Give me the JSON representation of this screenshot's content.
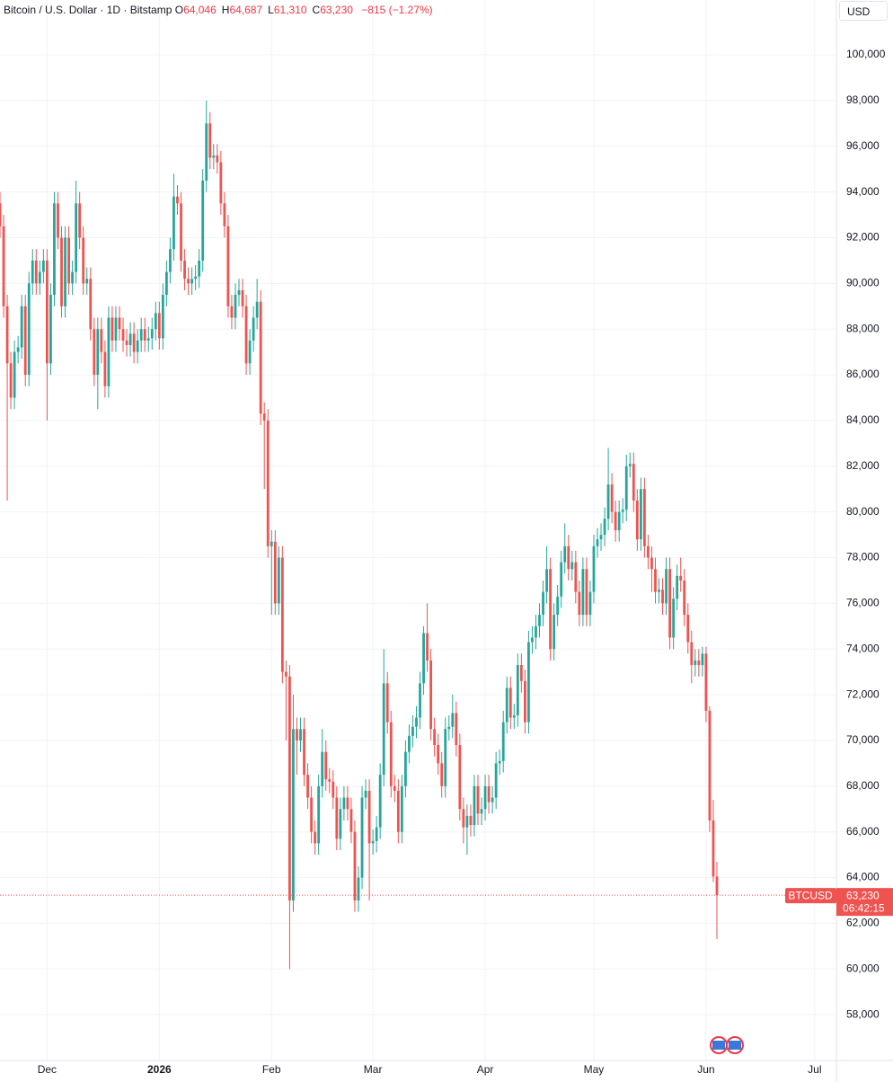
{
  "header": {
    "symbol": "Bitcoin / U.S. Dollar · 1D · Bitstamp",
    "ohlc": [
      {
        "label": "O",
        "value": "64,046"
      },
      {
        "label": "H",
        "value": "64,687"
      },
      {
        "label": "L",
        "value": "61,310"
      },
      {
        "label": "C",
        "value": "63,230"
      }
    ],
    "change": "−815 (−1.27%)"
  },
  "currency": "USD",
  "price_tag": {
    "name": "BTCUSD",
    "price": "63,230",
    "countdown": "06:42:15"
  },
  "chart_data": {
    "type": "candlestick",
    "up_color": "#26a69a",
    "down_color": "#ef5350",
    "grid": true,
    "x": [
      0,
      1,
      2,
      3,
      4,
      5,
      6,
      7,
      8,
      9,
      10,
      11,
      12,
      13,
      14,
      15,
      16,
      17,
      18,
      19,
      20,
      21,
      22,
      23,
      24,
      25,
      26,
      27,
      28,
      29,
      30,
      31,
      32,
      33,
      34,
      35,
      36,
      37,
      38,
      39,
      40,
      41,
      42,
      43,
      44,
      45,
      46,
      47,
      48,
      49,
      50,
      51,
      52,
      53,
      54,
      55,
      56,
      57,
      58,
      59,
      60,
      61,
      62,
      63,
      64,
      65,
      66,
      67,
      68,
      69,
      70,
      71,
      72,
      73,
      74,
      75,
      76,
      77,
      78,
      79,
      80,
      81,
      82,
      83,
      84,
      85,
      86,
      87,
      88,
      89,
      90,
      91,
      92,
      93,
      94,
      95,
      96,
      97,
      98,
      99,
      100,
      101,
      102,
      103,
      104,
      105,
      106,
      107,
      108,
      109,
      110,
      111,
      112,
      113,
      114,
      115,
      116,
      117,
      118,
      119,
      120,
      121,
      122,
      123,
      124,
      125,
      126,
      127,
      128,
      129,
      130,
      131,
      132,
      133,
      134,
      135,
      136,
      137,
      138,
      139,
      140,
      141,
      142,
      143,
      144,
      145,
      146,
      147,
      148,
      149,
      150,
      151,
      152,
      153,
      154,
      155,
      156,
      157,
      158,
      159,
      160,
      161,
      162,
      163,
      164,
      165,
      166,
      167,
      168,
      169,
      170,
      171,
      172,
      173,
      174,
      175,
      176,
      177,
      178,
      179,
      180,
      181,
      182,
      183,
      184,
      185,
      186,
      187,
      188,
      189,
      190,
      191,
      192,
      193,
      194,
      195,
      196,
      197,
      198
    ],
    "open": [
      93500,
      92500,
      89000,
      86500,
      85000,
      87000,
      87200,
      89000,
      86000,
      90000,
      91000,
      90000,
      90500,
      91000,
      86500,
      89500,
      93500,
      92000,
      89000,
      92000,
      90000,
      90500,
      93500,
      92000,
      90000,
      90200,
      88000,
      86000,
      88000,
      87000,
      85500,
      88500,
      87500,
      88500,
      88000,
      87500,
      87300,
      87800,
      87000,
      87500,
      88000,
      87500,
      87600,
      88000,
      88700,
      87600,
      89500,
      90500,
      91500,
      93800,
      93500,
      91000,
      90200,
      90000,
      90200,
      90300,
      91000,
      94500,
      97000,
      95500,
      95600,
      95300,
      93500,
      92500,
      89000,
      88500,
      89500,
      89700,
      89000,
      86500,
      87500,
      88500,
      89200,
      84300,
      84000,
      78500,
      78700,
      76000,
      78000,
      73000,
      72800,
      63000,
      70500,
      70000,
      70500,
      68500,
      67500,
      66000,
      65500,
      68000,
      69500,
      68300,
      68200,
      67500,
      65700,
      67000,
      67500,
      67000,
      66000,
      63000,
      64000,
      67500,
      67800,
      65500,
      65600,
      66200,
      68500,
      72500,
      70800,
      68000,
      67800,
      66000,
      68000,
      69500,
      70200,
      70600,
      71000,
      72500,
      74700,
      73500,
      70500,
      69800,
      69000,
      68000,
      70500,
      70600,
      71200,
      69800,
      67000,
      66200,
      66700,
      66300,
      68000,
      66800,
      67000,
      68000,
      67300,
      67500,
      69000,
      69100,
      70800,
      72300,
      71000,
      71100,
      73300,
      72600,
      70800,
      74300,
      74500,
      75000,
      75500,
      76500,
      77500,
      74000,
      75500,
      76300,
      77800,
      78500,
      77500,
      77800,
      76500,
      75500,
      77500,
      75500,
      76500,
      78500,
      78800,
      79000,
      79700,
      81200,
      80000,
      79200,
      80000,
      80100,
      82000,
      82100,
      80500,
      78800,
      81000,
      78500,
      78000,
      77500,
      76500,
      76600,
      76000,
      77500,
      74500,
      76200,
      77200,
      77000,
      75500,
      74300,
      73300,
      73500,
      73300,
      73800,
      71300,
      66500,
      64046
    ],
    "high": [
      94000,
      93000,
      89500,
      87000,
      87500,
      87700,
      89500,
      89500,
      90500,
      91500,
      91500,
      91000,
      91500,
      91500,
      90000,
      94000,
      94000,
      92500,
      92500,
      92500,
      91000,
      94500,
      94000,
      92500,
      90700,
      90700,
      88500,
      88500,
      88500,
      87500,
      89000,
      89000,
      89000,
      89000,
      88500,
      88000,
      88300,
      88300,
      88000,
      88500,
      88500,
      88100,
      88500,
      89200,
      89200,
      90000,
      91000,
      92000,
      94800,
      94300,
      94000,
      91500,
      90700,
      90700,
      90800,
      91500,
      95000,
      98000,
      97500,
      96100,
      96100,
      95800,
      94000,
      93000,
      89500,
      90000,
      90200,
      90200,
      89500,
      88000,
      89000,
      90200,
      89700,
      84800,
      84500,
      79200,
      79200,
      78500,
      78500,
      73500,
      73300,
      72000,
      71000,
      71000,
      71000,
      69000,
      68000,
      66500,
      68500,
      70500,
      70000,
      68800,
      68700,
      68000,
      67500,
      68000,
      68000,
      67500,
      66500,
      64500,
      68000,
      68300,
      68300,
      66100,
      66700,
      69000,
      74000,
      73000,
      71300,
      68500,
      68300,
      68500,
      70000,
      70700,
      71100,
      71500,
      73000,
      75000,
      76000,
      74000,
      71000,
      70300,
      69500,
      71000,
      71100,
      72000,
      71700,
      70300,
      67500,
      67200,
      67200,
      68500,
      68500,
      67500,
      68500,
      68500,
      68000,
      69500,
      69600,
      71300,
      72800,
      72800,
      71600,
      73800,
      73800,
      73100,
      74800,
      75000,
      75500,
      76000,
      77000,
      78500,
      78000,
      76000,
      76800,
      78300,
      79500,
      79000,
      78300,
      78300,
      77000,
      78000,
      78000,
      77000,
      79000,
      79300,
      79500,
      80200,
      82800,
      81700,
      80500,
      80500,
      80600,
      82500,
      82600,
      82600,
      81000,
      81500,
      81500,
      79000,
      78500,
      78000,
      77100,
      77100,
      78000,
      78000,
      76700,
      77700,
      78000,
      77500,
      76000,
      74800,
      74000,
      74000,
      74100,
      74100,
      71500,
      67400,
      64687
    ],
    "low": [
      92000,
      88500,
      80500,
      84500,
      84500,
      86500,
      86700,
      85500,
      85500,
      89500,
      89500,
      89500,
      90000,
      84000,
      86000,
      89000,
      91500,
      88500,
      88500,
      89500,
      89500,
      90000,
      91500,
      89500,
      89500,
      87500,
      85500,
      84500,
      86500,
      85000,
      85000,
      87000,
      87000,
      87500,
      87000,
      86800,
      86800,
      86500,
      86500,
      87000,
      87000,
      87000,
      87100,
      87500,
      87100,
      87100,
      89000,
      90000,
      91000,
      93000,
      90500,
      89700,
      89500,
      89500,
      89700,
      89800,
      90500,
      94000,
      95000,
      95000,
      94800,
      93000,
      92000,
      88500,
      88000,
      88000,
      89000,
      88500,
      86000,
      86000,
      87000,
      88000,
      83800,
      81000,
      78000,
      75500,
      75500,
      75500,
      72500,
      70000,
      60000,
      62500,
      68500,
      69500,
      68000,
      67000,
      65500,
      65000,
      65000,
      67500,
      67800,
      67700,
      67000,
      65200,
      65200,
      66500,
      66500,
      65500,
      62500,
      62500,
      63500,
      67000,
      63000,
      65000,
      65100,
      65700,
      68000,
      70300,
      67500,
      67300,
      65500,
      65500,
      67500,
      69000,
      69700,
      70100,
      70500,
      72000,
      73000,
      70000,
      69300,
      68500,
      67500,
      67500,
      70000,
      70100,
      69300,
      66500,
      65500,
      65000,
      65800,
      65800,
      66300,
      66300,
      66500,
      66800,
      66800,
      67000,
      68500,
      68600,
      70300,
      70500,
      70500,
      70600,
      72100,
      70300,
      70300,
      73800,
      74000,
      74500,
      75000,
      76000,
      73500,
      73500,
      75000,
      75800,
      77300,
      77000,
      77000,
      76000,
      75000,
      75000,
      75000,
      75000,
      76000,
      78000,
      78300,
      78500,
      79200,
      79500,
      78700,
      78700,
      79500,
      79600,
      81500,
      80000,
      78300,
      78300,
      78000,
      77500,
      76500,
      76000,
      76000,
      75500,
      75500,
      74000,
      74000,
      75700,
      76500,
      75000,
      73800,
      72500,
      72800,
      72800,
      72800,
      70800,
      66000,
      63800,
      61310
    ],
    "close": [
      92500,
      89000,
      86500,
      85000,
      87000,
      87200,
      89000,
      86000,
      90000,
      91000,
      90000,
      90500,
      91000,
      86500,
      89500,
      93500,
      92000,
      89000,
      92000,
      90000,
      90500,
      93500,
      92000,
      90000,
      90200,
      88000,
      86000,
      88000,
      87000,
      85500,
      88500,
      87500,
      88500,
      88000,
      87500,
      87300,
      87800,
      87000,
      87500,
      88000,
      87500,
      87600,
      88000,
      88700,
      87600,
      89500,
      90500,
      91500,
      93800,
      93500,
      91000,
      90200,
      90000,
      90200,
      90300,
      91000,
      94500,
      97000,
      95500,
      95600,
      95300,
      93500,
      92500,
      89000,
      88500,
      89500,
      89700,
      89000,
      86500,
      87500,
      88500,
      89200,
      84300,
      84000,
      78500,
      78700,
      76000,
      78000,
      73000,
      72800,
      63000,
      70500,
      70000,
      70500,
      68500,
      67500,
      66000,
      65500,
      68000,
      69500,
      68300,
      68200,
      67500,
      65700,
      67000,
      67500,
      67000,
      66000,
      63000,
      64000,
      67500,
      67800,
      65500,
      65600,
      66200,
      68500,
      72500,
      70800,
      68000,
      67800,
      66000,
      68000,
      69500,
      70200,
      70600,
      71000,
      72500,
      74700,
      73500,
      70500,
      69800,
      69000,
      68000,
      70500,
      70600,
      71200,
      69800,
      67000,
      66200,
      66700,
      66300,
      68000,
      66800,
      67000,
      68000,
      67300,
      67500,
      69000,
      69100,
      70800,
      72300,
      71000,
      71100,
      73300,
      72600,
      70800,
      74300,
      74500,
      75000,
      75500,
      76500,
      77500,
      74000,
      75500,
      76300,
      77800,
      78500,
      77500,
      77800,
      76500,
      75500,
      77500,
      75500,
      76500,
      78500,
      78800,
      79000,
      79700,
      81200,
      80000,
      79200,
      80000,
      80100,
      82000,
      82100,
      80500,
      78800,
      81000,
      78500,
      78000,
      77500,
      76500,
      76600,
      76000,
      77500,
      74500,
      76200,
      77200,
      77000,
      75500,
      74300,
      73300,
      73500,
      73300,
      73800,
      71300,
      66500,
      64046,
      63230
    ],
    "xlim": [
      0,
      231
    ],
    "xticks": [
      {
        "value": 13,
        "label": "Dec"
      },
      {
        "value": 44,
        "label": "2026"
      },
      {
        "value": 75,
        "label": "Feb"
      },
      {
        "value": 103,
        "label": "Mar"
      },
      {
        "value": 134,
        "label": "Apr"
      },
      {
        "value": 164,
        "label": "May"
      },
      {
        "value": 195,
        "label": "Jun"
      },
      {
        "value": 225,
        "label": "Jul"
      }
    ],
    "ylim": [
      56000,
      102400
    ],
    "yticks": [
      {
        "value": 58000,
        "label": "58,000"
      },
      {
        "value": 60000,
        "label": "60,000"
      },
      {
        "value": 62000,
        "label": "62,000"
      },
      {
        "value": 64000,
        "label": "64,000"
      },
      {
        "value": 66000,
        "label": "66,000"
      },
      {
        "value": 68000,
        "label": "68,000"
      },
      {
        "value": 70000,
        "label": "70,000"
      },
      {
        "value": 72000,
        "label": "72,000"
      },
      {
        "value": 74000,
        "label": "74,000"
      },
      {
        "value": 76000,
        "label": "76,000"
      },
      {
        "value": 78000,
        "label": "78,000"
      },
      {
        "value": 80000,
        "label": "80,000"
      },
      {
        "value": 82000,
        "label": "82,000"
      },
      {
        "value": 84000,
        "label": "84,000"
      },
      {
        "value": 86000,
        "label": "86,000"
      },
      {
        "value": 88000,
        "label": "88,000"
      },
      {
        "value": 90000,
        "label": "90,000"
      },
      {
        "value": 92000,
        "label": "92,000"
      },
      {
        "value": 94000,
        "label": "94,000"
      },
      {
        "value": 96000,
        "label": "96,000"
      },
      {
        "value": 98000,
        "label": "98,000"
      },
      {
        "value": 100000,
        "label": "100,000"
      }
    ]
  }
}
